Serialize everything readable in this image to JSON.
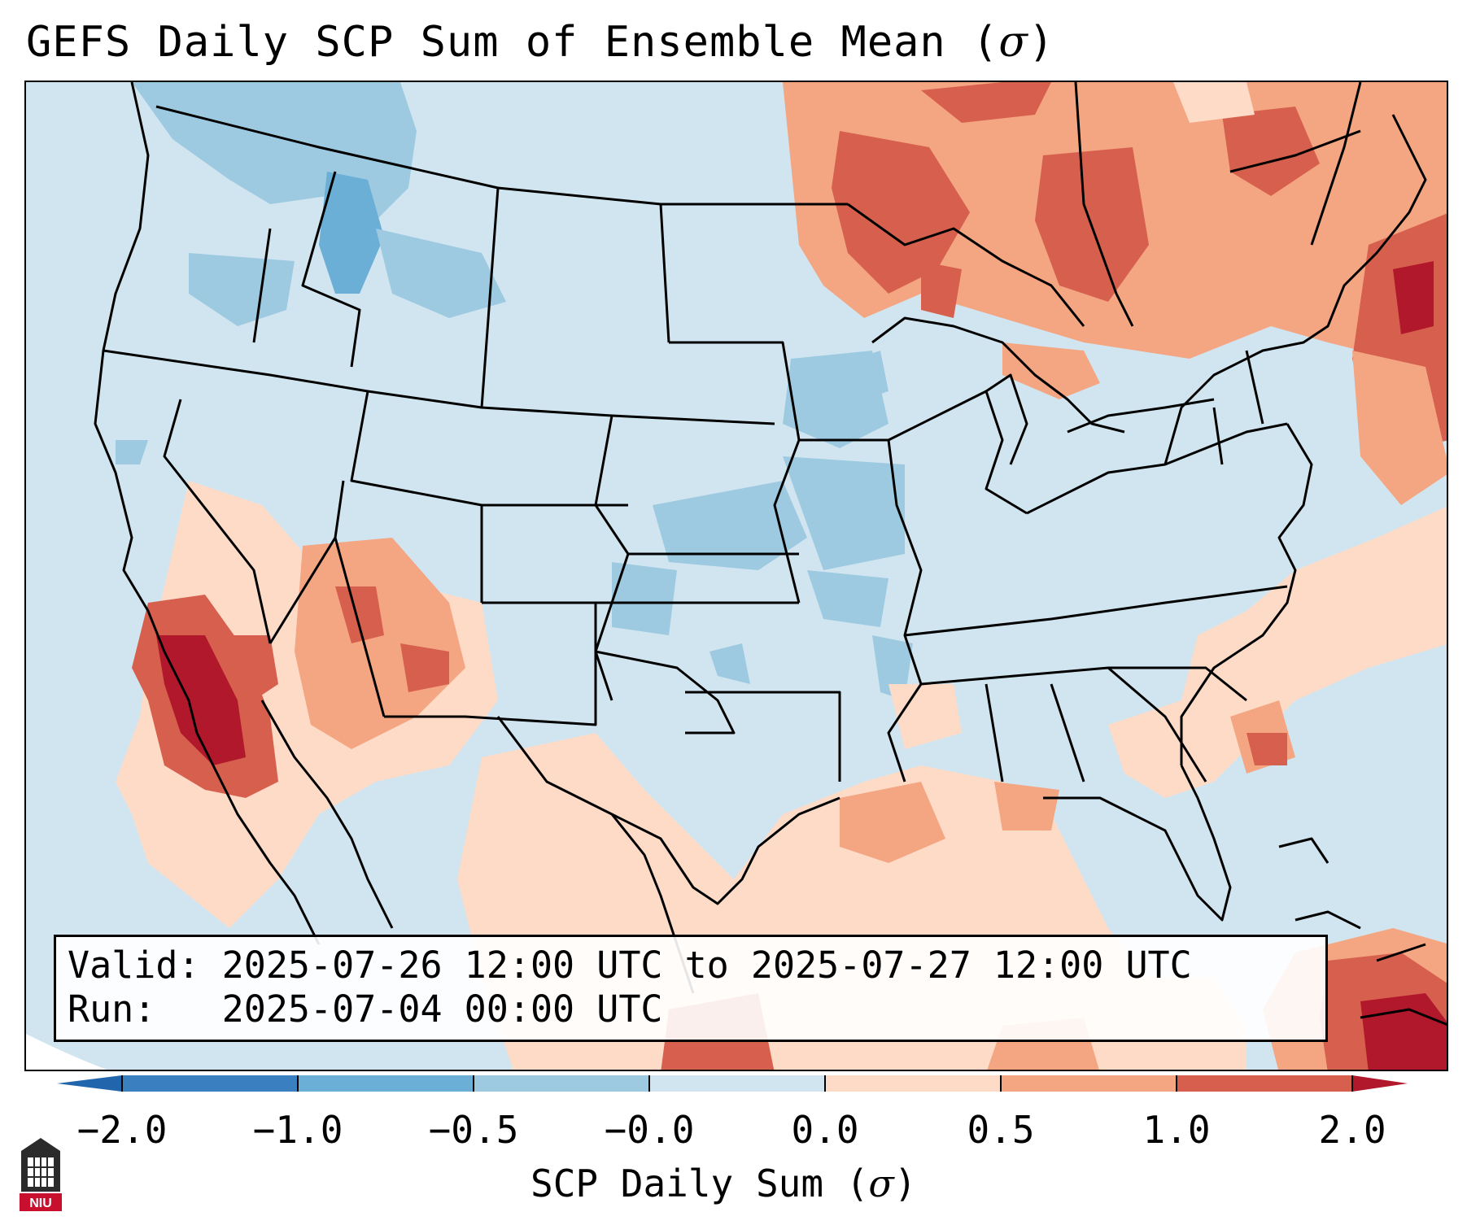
{
  "title": "GEFS Daily SCP Sum of Ensemble Mean (",
  "title_symbol": "σ",
  "title_close": ")",
  "info": {
    "valid_label": "Valid:",
    "valid_value": "2025-07-26 12:00 UTC to 2025-07-27 12:00 UTC",
    "run_label": "Run:",
    "run_value": "2025-07-04 00:00 UTC"
  },
  "colorbar": {
    "label": "SCP Daily Sum (",
    "label_symbol": "σ",
    "label_close": ")",
    "ticks": [
      "−2.0",
      "−1.0",
      "−0.5",
      "−0.0",
      "0.0",
      "0.5",
      "1.0",
      "2.0"
    ],
    "colors": [
      "#3a7fbf",
      "#6baed6",
      "#9ecae1",
      "#d1e5f0",
      "#fddbc7",
      "#f4a582",
      "#d6604d",
      "#b2182b"
    ],
    "extend_min_color": "#2166ac",
    "extend_max_color": "#b2182b"
  },
  "logo_text": "NIU",
  "colors": {
    "ocean": "#d1e5f0",
    "weak_pos": "#fddbc7",
    "mod_pos": "#f4a582",
    "strong_pos": "#d6604d",
    "max_pos": "#b2182b",
    "weak_neg": "#9ecae1",
    "mod_neg": "#6baed6"
  }
}
